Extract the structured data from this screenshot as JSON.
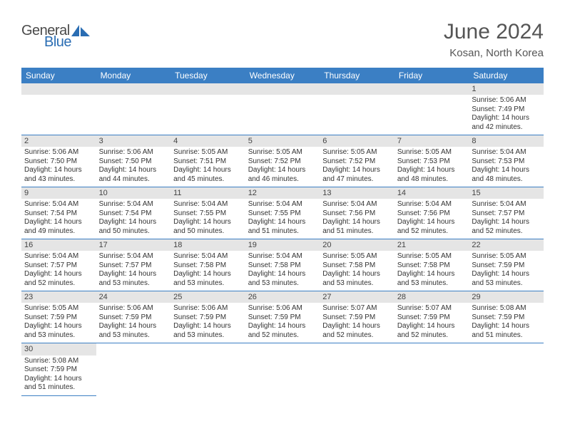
{
  "logo": {
    "text1": "General",
    "text2": "Blue",
    "shape_color": "#2a6db3",
    "text1_color": "#4a4a4a"
  },
  "title": "June 2024",
  "location": "Kosan, North Korea",
  "colors": {
    "header_bg": "#3b7fc4",
    "header_fg": "#ffffff",
    "daynum_bg": "#e5e5e5",
    "rule": "#3b7fc4",
    "text": "#333333"
  },
  "weekdays": [
    "Sunday",
    "Monday",
    "Tuesday",
    "Wednesday",
    "Thursday",
    "Friday",
    "Saturday"
  ],
  "weeks": [
    [
      null,
      null,
      null,
      null,
      null,
      null,
      {
        "d": "1",
        "sr": "5:06 AM",
        "ss": "7:49 PM",
        "dl": "14 hours and 42 minutes."
      }
    ],
    [
      {
        "d": "2",
        "sr": "5:06 AM",
        "ss": "7:50 PM",
        "dl": "14 hours and 43 minutes."
      },
      {
        "d": "3",
        "sr": "5:06 AM",
        "ss": "7:50 PM",
        "dl": "14 hours and 44 minutes."
      },
      {
        "d": "4",
        "sr": "5:05 AM",
        "ss": "7:51 PM",
        "dl": "14 hours and 45 minutes."
      },
      {
        "d": "5",
        "sr": "5:05 AM",
        "ss": "7:52 PM",
        "dl": "14 hours and 46 minutes."
      },
      {
        "d": "6",
        "sr": "5:05 AM",
        "ss": "7:52 PM",
        "dl": "14 hours and 47 minutes."
      },
      {
        "d": "7",
        "sr": "5:05 AM",
        "ss": "7:53 PM",
        "dl": "14 hours and 48 minutes."
      },
      {
        "d": "8",
        "sr": "5:04 AM",
        "ss": "7:53 PM",
        "dl": "14 hours and 48 minutes."
      }
    ],
    [
      {
        "d": "9",
        "sr": "5:04 AM",
        "ss": "7:54 PM",
        "dl": "14 hours and 49 minutes."
      },
      {
        "d": "10",
        "sr": "5:04 AM",
        "ss": "7:54 PM",
        "dl": "14 hours and 50 minutes."
      },
      {
        "d": "11",
        "sr": "5:04 AM",
        "ss": "7:55 PM",
        "dl": "14 hours and 50 minutes."
      },
      {
        "d": "12",
        "sr": "5:04 AM",
        "ss": "7:55 PM",
        "dl": "14 hours and 51 minutes."
      },
      {
        "d": "13",
        "sr": "5:04 AM",
        "ss": "7:56 PM",
        "dl": "14 hours and 51 minutes."
      },
      {
        "d": "14",
        "sr": "5:04 AM",
        "ss": "7:56 PM",
        "dl": "14 hours and 52 minutes."
      },
      {
        "d": "15",
        "sr": "5:04 AM",
        "ss": "7:57 PM",
        "dl": "14 hours and 52 minutes."
      }
    ],
    [
      {
        "d": "16",
        "sr": "5:04 AM",
        "ss": "7:57 PM",
        "dl": "14 hours and 52 minutes."
      },
      {
        "d": "17",
        "sr": "5:04 AM",
        "ss": "7:57 PM",
        "dl": "14 hours and 53 minutes."
      },
      {
        "d": "18",
        "sr": "5:04 AM",
        "ss": "7:58 PM",
        "dl": "14 hours and 53 minutes."
      },
      {
        "d": "19",
        "sr": "5:04 AM",
        "ss": "7:58 PM",
        "dl": "14 hours and 53 minutes."
      },
      {
        "d": "20",
        "sr": "5:05 AM",
        "ss": "7:58 PM",
        "dl": "14 hours and 53 minutes."
      },
      {
        "d": "21",
        "sr": "5:05 AM",
        "ss": "7:58 PM",
        "dl": "14 hours and 53 minutes."
      },
      {
        "d": "22",
        "sr": "5:05 AM",
        "ss": "7:59 PM",
        "dl": "14 hours and 53 minutes."
      }
    ],
    [
      {
        "d": "23",
        "sr": "5:05 AM",
        "ss": "7:59 PM",
        "dl": "14 hours and 53 minutes."
      },
      {
        "d": "24",
        "sr": "5:06 AM",
        "ss": "7:59 PM",
        "dl": "14 hours and 53 minutes."
      },
      {
        "d": "25",
        "sr": "5:06 AM",
        "ss": "7:59 PM",
        "dl": "14 hours and 53 minutes."
      },
      {
        "d": "26",
        "sr": "5:06 AM",
        "ss": "7:59 PM",
        "dl": "14 hours and 52 minutes."
      },
      {
        "d": "27",
        "sr": "5:07 AM",
        "ss": "7:59 PM",
        "dl": "14 hours and 52 minutes."
      },
      {
        "d": "28",
        "sr": "5:07 AM",
        "ss": "7:59 PM",
        "dl": "14 hours and 52 minutes."
      },
      {
        "d": "29",
        "sr": "5:08 AM",
        "ss": "7:59 PM",
        "dl": "14 hours and 51 minutes."
      }
    ],
    [
      {
        "d": "30",
        "sr": "5:08 AM",
        "ss": "7:59 PM",
        "dl": "14 hours and 51 minutes."
      },
      null,
      null,
      null,
      null,
      null,
      null
    ]
  ],
  "labels": {
    "sunrise": "Sunrise:",
    "sunset": "Sunset:",
    "daylight": "Daylight:"
  }
}
